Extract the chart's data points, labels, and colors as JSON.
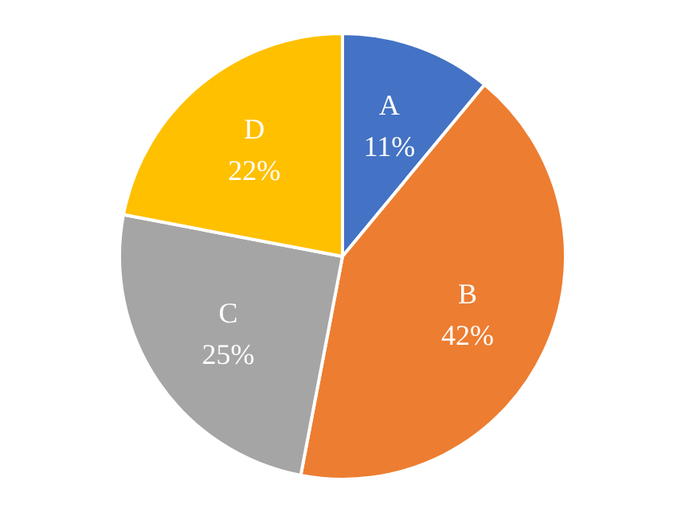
{
  "chart_data": {
    "type": "pie",
    "categories": [
      "A",
      "B",
      "C",
      "D"
    ],
    "values": [
      11,
      42,
      25,
      22
    ],
    "value_labels": [
      "11%",
      "42%",
      "25%",
      "22%"
    ],
    "colors": [
      "#4472c4",
      "#ed7d31",
      "#a5a5a5",
      "#ffc000"
    ],
    "legend": false
  }
}
